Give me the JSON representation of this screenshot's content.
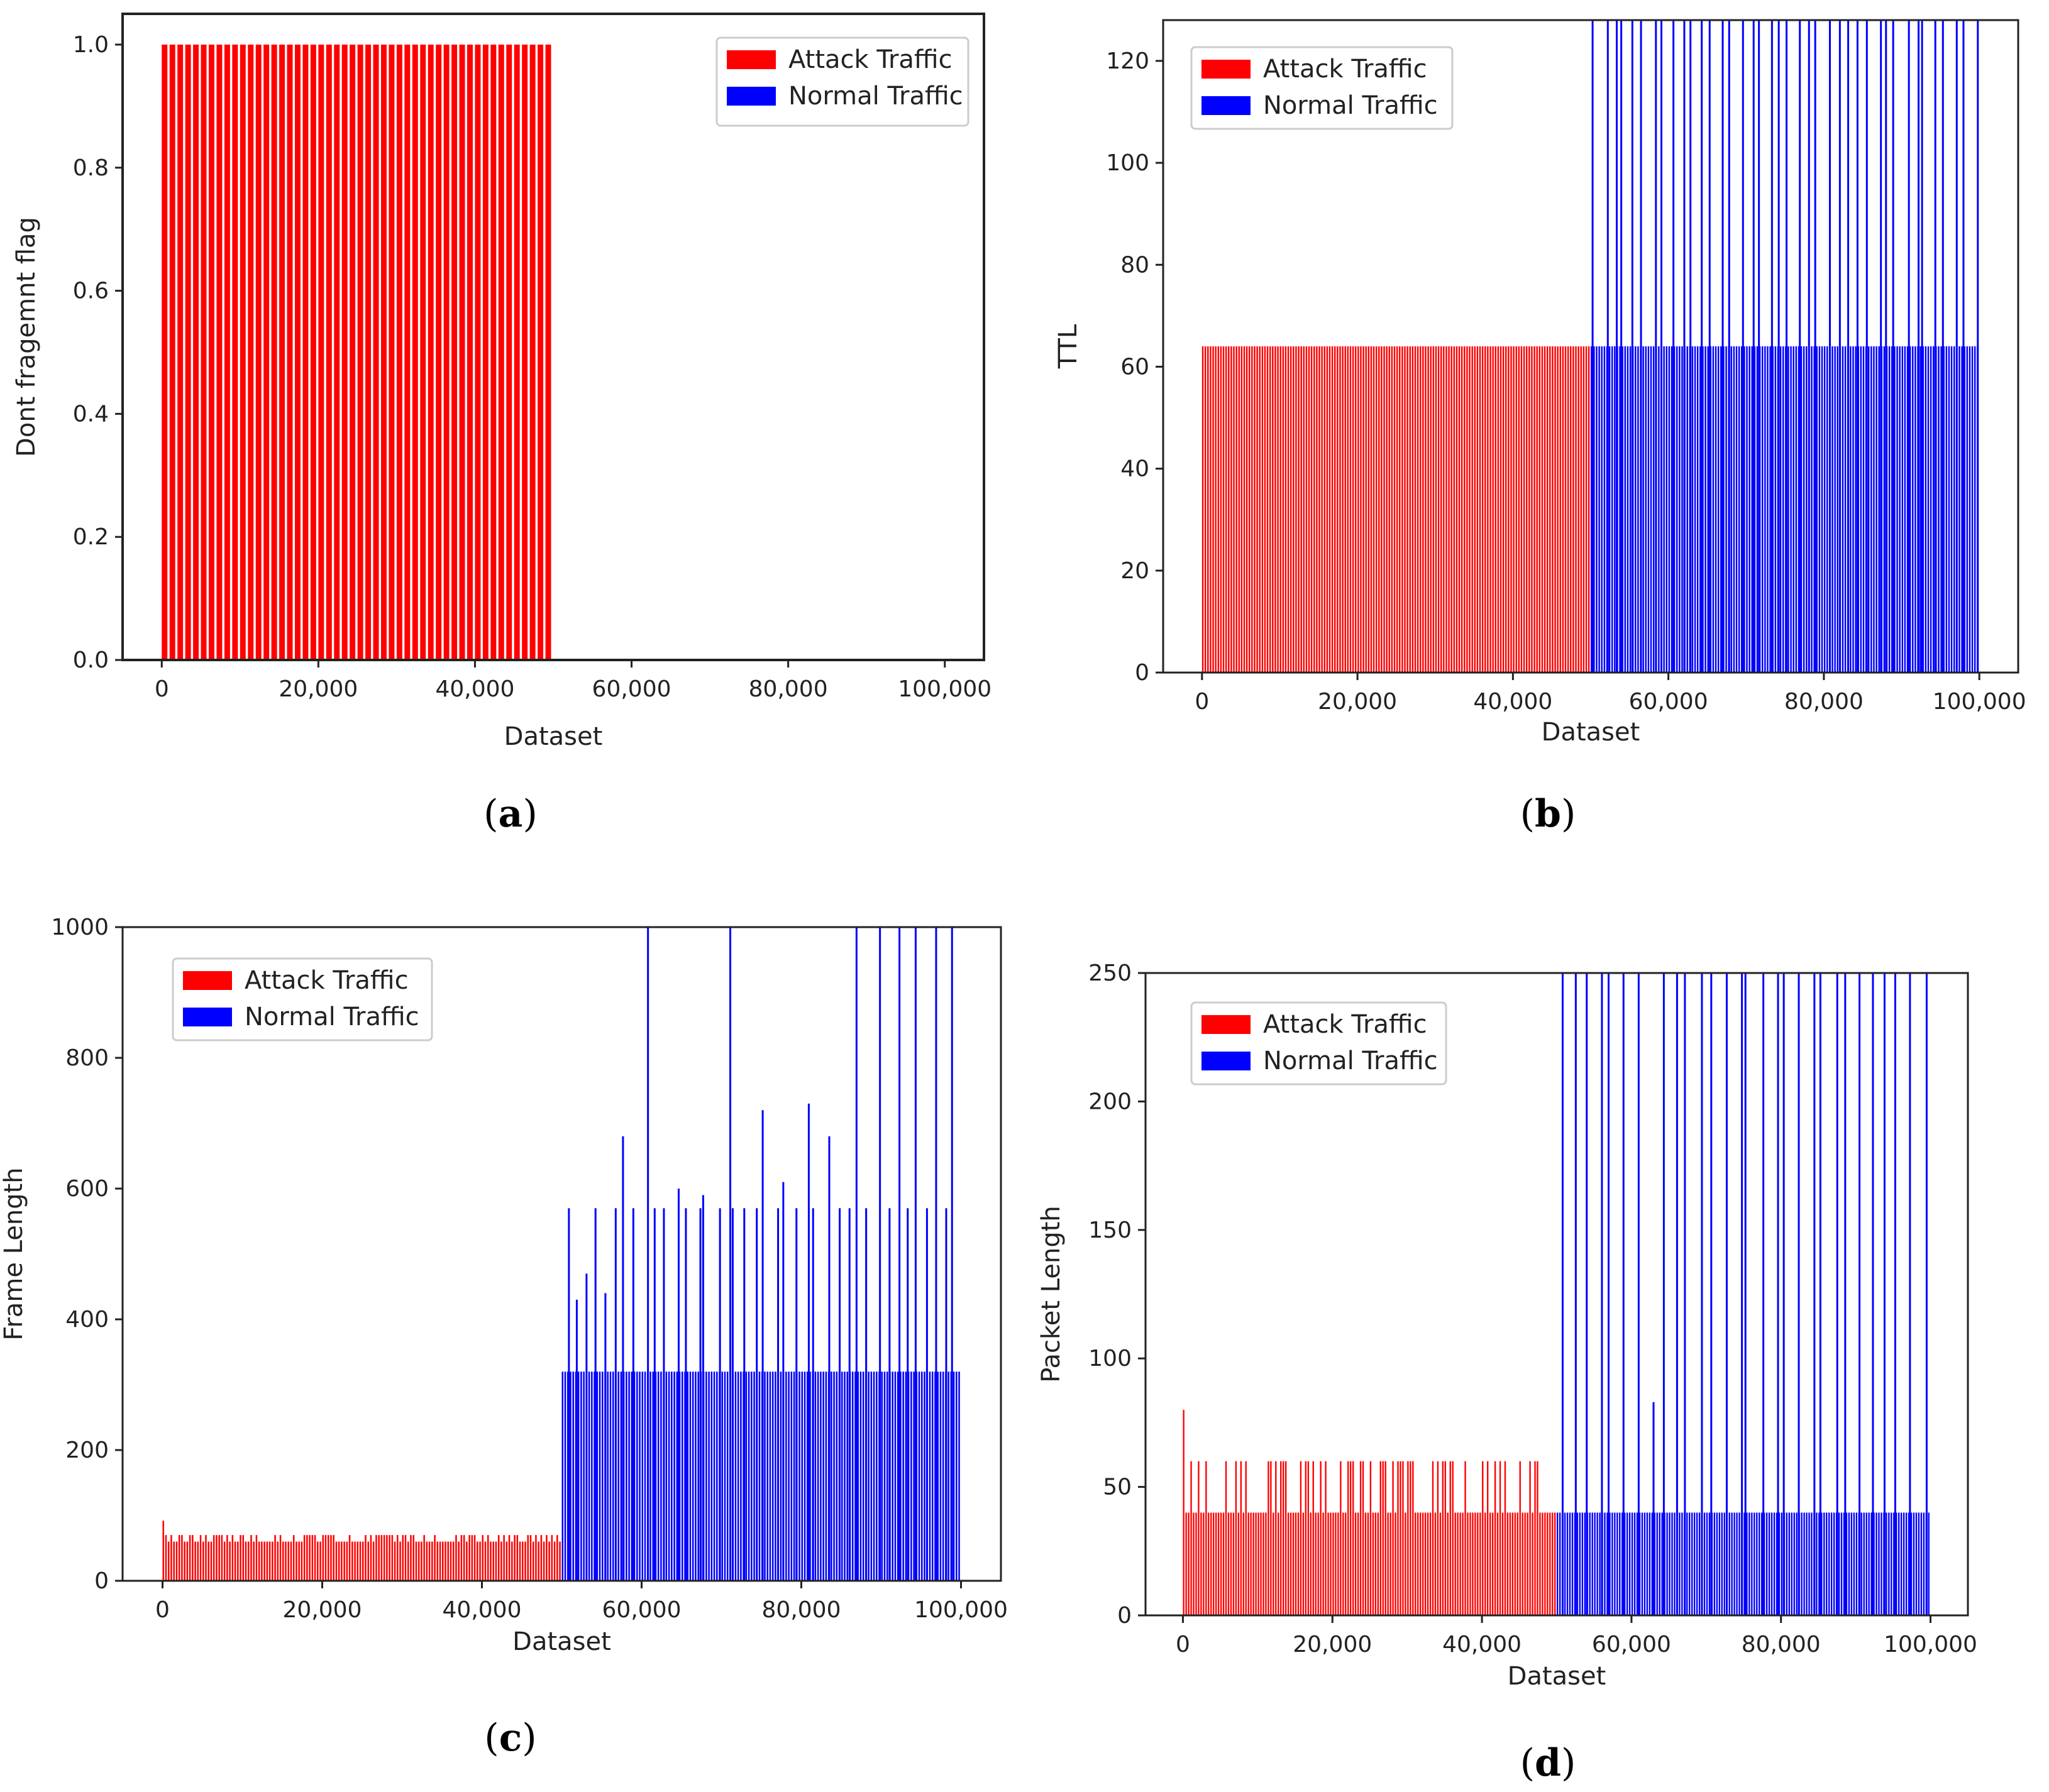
{
  "chart_data": [
    {
      "type": "bar",
      "panel": "a",
      "caption_label": "a",
      "title": "",
      "xlabel": "Dataset",
      "ylabel": "Dont fragemnt flag",
      "xlim": [
        -5000,
        105000
      ],
      "ylim": [
        0,
        1.05
      ],
      "xticks": [
        0,
        20000,
        40000,
        60000,
        80000,
        100000
      ],
      "xtick_labels": [
        "0",
        "20,000",
        "40,000",
        "60,000",
        "80,000",
        "100,000"
      ],
      "yticks": [
        0,
        0.2,
        0.4,
        0.6,
        0.8,
        1.0
      ],
      "ytick_labels": [
        "0.0",
        "0.2",
        "0.4",
        "0.6",
        "0.8",
        "1.0"
      ],
      "legend_position": "top-right",
      "legend": [
        {
          "label": "Attack Traffic",
          "color": "#ff0000"
        },
        {
          "label": "Normal Traffic",
          "color": "#0000ff"
        }
      ],
      "series": [
        {
          "name": "Attack Traffic",
          "color": "#ff0000",
          "x_start": 0,
          "x_end": 50000,
          "bars": 50,
          "base": 1.0
        },
        {
          "name": "Normal Traffic",
          "color": "#0000ff",
          "x_start": 50000,
          "x_end": 100000,
          "bars": 0,
          "base": 0
        }
      ]
    },
    {
      "type": "bar",
      "panel": "b",
      "caption_label": "b",
      "title": "",
      "xlabel": "Dataset",
      "ylabel": "TTL",
      "xlim": [
        -5000,
        105000
      ],
      "ylim": [
        0,
        128
      ],
      "xticks": [
        0,
        20000,
        40000,
        60000,
        80000,
        100000
      ],
      "xtick_labels": [
        "0",
        "20,000",
        "40,000",
        "60,000",
        "80,000",
        "100,000"
      ],
      "yticks": [
        0,
        20,
        40,
        60,
        80,
        100,
        120
      ],
      "ytick_labels": [
        "0",
        "20",
        "40",
        "60",
        "80",
        "100",
        "120"
      ],
      "legend_position": "top-left",
      "legend": [
        {
          "label": "Attack Traffic",
          "color": "#ff0000"
        },
        {
          "label": "Normal Traffic",
          "color": "#0000ff"
        }
      ],
      "series": [
        {
          "name": "Attack Traffic",
          "color": "#ff0000",
          "x_start": 0,
          "x_end": 50000,
          "bars": 150,
          "base": 64
        },
        {
          "name": "Normal Traffic",
          "color": "#0000ff",
          "x_start": 50000,
          "x_end": 100000,
          "bars": 150,
          "base": 64,
          "spikes": [
            128,
            128,
            128,
            128,
            128,
            128,
            128,
            128,
            128,
            128,
            128,
            128,
            128,
            128,
            128,
            128,
            128,
            128,
            128,
            128,
            128,
            128,
            128,
            128,
            128,
            128,
            128,
            128,
            128,
            128,
            128,
            128,
            128,
            128,
            128,
            128,
            128,
            128,
            128,
            128
          ]
        }
      ]
    },
    {
      "type": "bar",
      "panel": "c",
      "caption_label": "c",
      "title": "",
      "xlabel": "Dataset",
      "ylabel": "Frame Length",
      "xlim": [
        -5000,
        105000
      ],
      "ylim": [
        0,
        1000
      ],
      "xticks": [
        0,
        20000,
        40000,
        60000,
        80000,
        100000
      ],
      "xtick_labels": [
        "0",
        "20,000",
        "40,000",
        "60,000",
        "80,000",
        "100,000"
      ],
      "yticks": [
        0,
        200,
        400,
        600,
        800,
        1000
      ],
      "ytick_labels": [
        "0",
        "200",
        "400",
        "600",
        "800",
        "1000"
      ],
      "legend_position": "top-left",
      "legend": [
        {
          "label": "Attack Traffic",
          "color": "#ff0000"
        },
        {
          "label": "Normal Traffic",
          "color": "#0000ff"
        }
      ],
      "series": [
        {
          "name": "Attack Traffic",
          "color": "#ff0000",
          "x_start": 0,
          "x_end": 50000,
          "bars": 150,
          "base": 60,
          "peak": 92
        },
        {
          "name": "Normal Traffic",
          "color": "#0000ff",
          "x_start": 50000,
          "x_end": 100000,
          "bars": 150,
          "base": 320,
          "spikes": [
            570,
            430,
            470,
            570,
            440,
            570,
            680,
            570,
            1000,
            570,
            570,
            600,
            570,
            570,
            590,
            570,
            1000,
            570,
            570,
            570,
            720,
            570,
            610,
            570,
            730,
            570,
            680,
            570,
            570,
            1000,
            570,
            1000,
            570,
            1000,
            570,
            1000,
            570,
            1000,
            570,
            1000
          ]
        }
      ]
    },
    {
      "type": "bar",
      "panel": "d",
      "caption_label": "d",
      "title": "",
      "xlabel": "Dataset",
      "ylabel": "Packet Length",
      "xlim": [
        -5000,
        105000
      ],
      "ylim": [
        0,
        250
      ],
      "xticks": [
        0,
        20000,
        40000,
        60000,
        80000,
        100000
      ],
      "xtick_labels": [
        "0",
        "20,000",
        "40,000",
        "60,000",
        "80,000",
        "100,000"
      ],
      "yticks": [
        0,
        50,
        100,
        150,
        200,
        250
      ],
      "ytick_labels": [
        "0",
        "50",
        "100",
        "150",
        "200",
        "250"
      ],
      "legend_position": "top-left",
      "legend": [
        {
          "label": "Attack Traffic",
          "color": "#ff0000"
        },
        {
          "label": "Normal Traffic",
          "color": "#0000ff"
        }
      ],
      "series": [
        {
          "name": "Attack Traffic",
          "color": "#ff0000",
          "x_start": 0,
          "x_end": 50000,
          "bars": 150,
          "base": 40,
          "peak": 80,
          "alt": 60
        },
        {
          "name": "Normal Traffic",
          "color": "#0000ff",
          "x_start": 50000,
          "x_end": 100000,
          "bars": 150,
          "base": 40,
          "spikes": [
            250,
            250,
            250,
            250,
            250,
            250,
            250,
            83,
            250,
            250,
            250,
            250,
            250,
            250,
            250,
            250,
            250,
            250,
            250,
            250,
            250,
            250,
            250,
            250,
            250,
            250,
            250,
            250,
            250,
            250
          ]
        }
      ]
    }
  ]
}
